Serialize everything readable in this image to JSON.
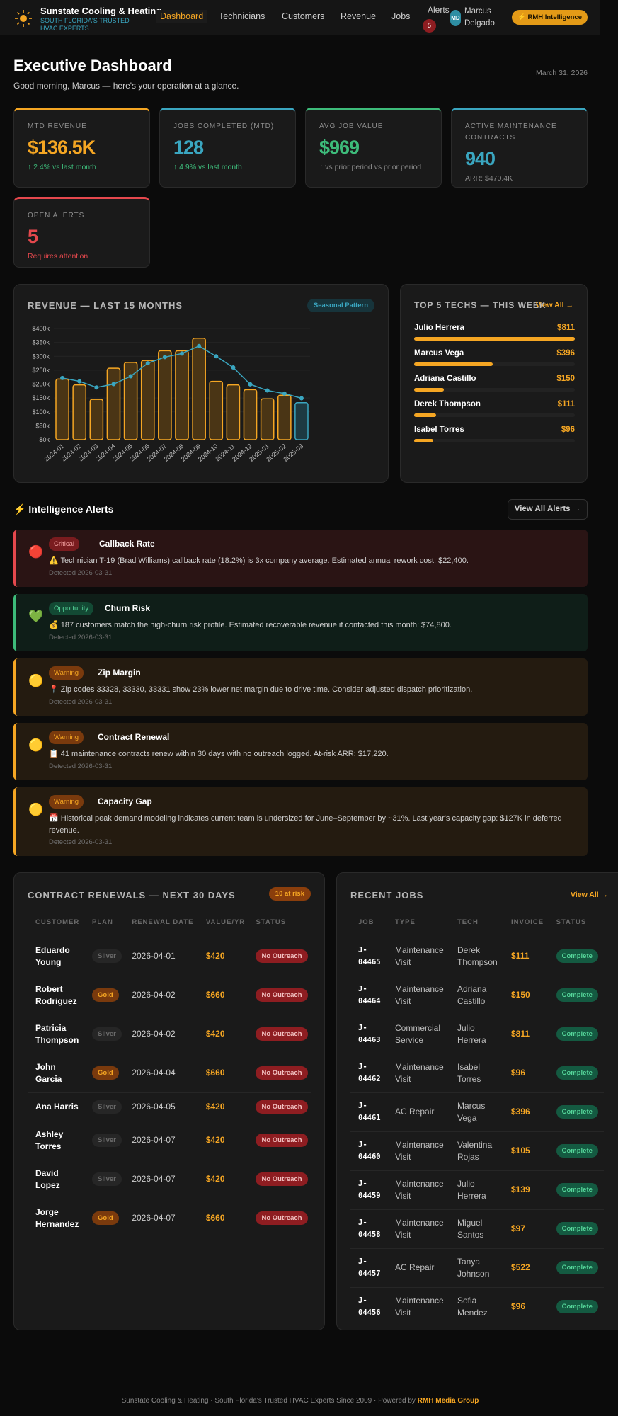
{
  "header": {
    "brand": "Sunstate Cooling & Heating",
    "tagline": "SOUTH FLORIDA'S TRUSTED HVAC EXPERTS",
    "nav": [
      "Dashboard",
      "Technicians",
      "Customers",
      "Revenue",
      "Jobs"
    ],
    "active_nav": "Dashboard",
    "alerts_label": "Alerts",
    "alerts_count": "5",
    "avatar_initials": "MD",
    "user_name": "Marcus Delgado",
    "cta": "⚡ RMH Intelligence"
  },
  "page": {
    "title": "Executive Dashboard",
    "subtitle": "Good morning, Marcus — here's your operation at a glance.",
    "date": "March 31, 2026"
  },
  "kpis": [
    {
      "label": "MTD REVENUE",
      "value": "$136.5K",
      "sub": "↑ 2.4% vs last month",
      "color": "#f5a623",
      "sub_color": "#3dbb7a"
    },
    {
      "label": "JOBS COMPLETED (MTD)",
      "value": "128",
      "sub": "↑ 4.9% vs last month",
      "color": "#3aa6c0",
      "sub_color": "#3dbb7a"
    },
    {
      "label": "AVG JOB VALUE",
      "value": "$969",
      "sub": "↑ vs prior period vs prior period",
      "color": "#3dbb7a",
      "sub_color": "#8a8a8a"
    },
    {
      "label": "ACTIVE MAINTENANCE CONTRACTS",
      "value": "940",
      "sub": "ARR: $470.4K",
      "color": "#3aa6c0",
      "sub_color": "#8a8a8a"
    },
    {
      "label": "OPEN ALERTS",
      "value": "5",
      "sub": "Requires attention",
      "color": "#e5484d",
      "sub_color": "#e5484d"
    }
  ],
  "chart_data": {
    "type": "bar",
    "title": "REVENUE — LAST 15 MONTHS",
    "badge": "Seasonal Pattern",
    "categories": [
      "2024-01",
      "2024-02",
      "2024-03",
      "2024-04",
      "2024-05",
      "2024-06",
      "2024-07",
      "2024-08",
      "2024-09",
      "2024-10",
      "2024-11",
      "2024-12",
      "2025-01",
      "2025-02",
      "2025-03"
    ],
    "series": [
      {
        "type": "bar",
        "values": [
          218000,
          197000,
          145000,
          257000,
          278000,
          285000,
          320000,
          320000,
          365000,
          210000,
          197000,
          180000,
          147000,
          160000,
          133000
        ]
      },
      {
        "type": "line",
        "values": [
          222000,
          210000,
          188000,
          200000,
          228000,
          275000,
          297000,
          310000,
          337000,
          300000,
          260000,
          199000,
          177000,
          166000,
          149000
        ]
      }
    ],
    "ylim": [
      0,
      400000
    ],
    "yticks": [
      "$0k",
      "$50k",
      "$100k",
      "$150k",
      "$200k",
      "$250k",
      "$300k",
      "$350k",
      "$400k"
    ],
    "grid": true,
    "colors": {
      "bar": "#f5a623",
      "current_bar": "#3aa6c0",
      "line": "#3aa6c0"
    }
  },
  "techs": {
    "title": "TOP 5 TECHS — THIS WEEK",
    "view_all": "View All →",
    "items": [
      {
        "name": "Julio Herrera",
        "amount": "$811",
        "value": 811
      },
      {
        "name": "Marcus Vega",
        "amount": "$396",
        "value": 396
      },
      {
        "name": "Adriana Castillo",
        "amount": "$150",
        "value": 150
      },
      {
        "name": "Derek Thompson",
        "amount": "$111",
        "value": 111
      },
      {
        "name": "Isabel Torres",
        "amount": "$96",
        "value": 96
      }
    ]
  },
  "alerts": {
    "title": "⚡ Intelligence Alerts",
    "view_all": "View All Alerts →",
    "items": [
      {
        "icon": "🔴",
        "level": "Critical",
        "title": "Callback Rate",
        "message": "⚠️ Technician T-19 (Brad Williams) callback rate (18.2%) is 3x company average. Estimated annual rework cost: $22,400.",
        "detected": "Detected 2026-03-31"
      },
      {
        "icon": "💚",
        "level": "Opportunity",
        "title": "Churn Risk",
        "message": "💰 187 customers match the high-churn risk profile. Estimated recoverable revenue if contacted this month: $74,800.",
        "detected": "Detected 2026-03-31"
      },
      {
        "icon": "🟡",
        "level": "Warning",
        "title": "Zip Margin",
        "message": "📍 Zip codes 33328, 33330, 33331 show 23% lower net margin due to drive time. Consider adjusted dispatch prioritization.",
        "detected": "Detected 2026-03-31"
      },
      {
        "icon": "🟡",
        "level": "Warning",
        "title": "Contract Renewal",
        "message": "📋 41 maintenance contracts renew within 30 days with no outreach logged. At-risk ARR: $17,220.",
        "detected": "Detected 2026-03-31"
      },
      {
        "icon": "🟡",
        "level": "Warning",
        "title": "Capacity Gap",
        "message": "📅 Historical peak demand modeling indicates current team is undersized for June–September by ~31%. Last year's capacity gap: $127K in deferred revenue.",
        "detected": "Detected 2026-03-31"
      }
    ]
  },
  "renewals": {
    "title": "CONTRACT RENEWALS — NEXT 30 DAYS",
    "badge": "10 at risk",
    "columns": [
      "CUSTOMER",
      "PLAN",
      "RENEWAL DATE",
      "VALUE/YR",
      "STATUS"
    ],
    "rows": [
      [
        "Eduardo Young",
        "Silver",
        "2026-04-01",
        "$420",
        "No Outreach"
      ],
      [
        "Robert Rodriguez",
        "Gold",
        "2026-04-02",
        "$660",
        "No Outreach"
      ],
      [
        "Patricia Thompson",
        "Silver",
        "2026-04-02",
        "$420",
        "No Outreach"
      ],
      [
        "John Garcia",
        "Gold",
        "2026-04-04",
        "$660",
        "No Outreach"
      ],
      [
        "Ana Harris",
        "Silver",
        "2026-04-05",
        "$420",
        "No Outreach"
      ],
      [
        "Ashley Torres",
        "Silver",
        "2026-04-07",
        "$420",
        "No Outreach"
      ],
      [
        "David Lopez",
        "Silver",
        "2026-04-07",
        "$420",
        "No Outreach"
      ],
      [
        "Jorge Hernandez",
        "Gold",
        "2026-04-07",
        "$660",
        "No Outreach"
      ]
    ]
  },
  "jobs": {
    "title": "RECENT JOBS",
    "view_all": "View All →",
    "columns": [
      "JOB",
      "TYPE",
      "TECH",
      "INVOICE",
      "STATUS"
    ],
    "rows": [
      [
        "J-04465",
        "Maintenance Visit",
        "Derek Thompson",
        "$111",
        "Complete"
      ],
      [
        "J-04464",
        "Maintenance Visit",
        "Adriana Castillo",
        "$150",
        "Complete"
      ],
      [
        "J-04463",
        "Commercial Service",
        "Julio Herrera",
        "$811",
        "Complete"
      ],
      [
        "J-04462",
        "Maintenance Visit",
        "Isabel Torres",
        "$96",
        "Complete"
      ],
      [
        "J-04461",
        "AC Repair",
        "Marcus Vega",
        "$396",
        "Complete"
      ],
      [
        "J-04460",
        "Maintenance Visit",
        "Valentina Rojas",
        "$105",
        "Complete"
      ],
      [
        "J-04459",
        "Maintenance Visit",
        "Julio Herrera",
        "$139",
        "Complete"
      ],
      [
        "J-04458",
        "Maintenance Visit",
        "Miguel Santos",
        "$97",
        "Complete"
      ],
      [
        "J-04457",
        "AC Repair",
        "Tanya Johnson",
        "$522",
        "Complete"
      ],
      [
        "J-04456",
        "Maintenance Visit",
        "Sofia Mendez",
        "$96",
        "Complete"
      ]
    ]
  },
  "footer": {
    "text": "Sunstate Cooling & Heating · South Florida's Trusted HVAC Experts Since 2009 · Powered by ",
    "link": "RMH Media Group"
  }
}
